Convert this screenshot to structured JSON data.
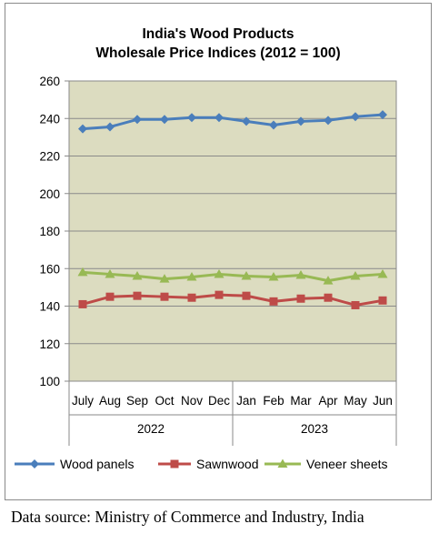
{
  "chart_data": {
    "type": "line",
    "title": [
      "India's Wood Products",
      "Wholesale Price Indices (2012 = 100)"
    ],
    "xlabel": "",
    "ylabel": "",
    "ylim": [
      100,
      260
    ],
    "yticks": [
      "260",
      "240",
      "220",
      "200",
      "180",
      "160",
      "140",
      "120",
      "100"
    ],
    "categories": [
      "July",
      "Aug",
      "Sep",
      "Oct",
      "Nov",
      "Dec",
      "Jan",
      "Feb",
      "Mar",
      "Apr",
      "May",
      "Jun"
    ],
    "year_groups": [
      {
        "label": "2022",
        "count": 6
      },
      {
        "label": "2023",
        "count": 6
      }
    ],
    "series": [
      {
        "name": "Wood panels",
        "color": "#4a7ebb",
        "marker": "diamond",
        "values": [
          234.5,
          235.5,
          239.5,
          239.5,
          240.5,
          240.5,
          238.5,
          236.5,
          238.5,
          239.0,
          241.0,
          242.0
        ]
      },
      {
        "name": "Sawnwood",
        "color": "#be4b48",
        "marker": "square",
        "values": [
          141.0,
          145.0,
          145.5,
          145.0,
          144.5,
          146.0,
          145.5,
          142.5,
          144.0,
          144.5,
          140.5,
          143.0
        ]
      },
      {
        "name": "Veneer sheets",
        "color": "#98b954",
        "marker": "triangle",
        "values": [
          158.0,
          157.0,
          156.0,
          154.5,
          155.5,
          157.0,
          156.0,
          155.5,
          156.5,
          153.5,
          156.0,
          157.0
        ]
      }
    ],
    "legend_position": "bottom",
    "grid": true,
    "plot_background": "#dcdcc0"
  },
  "source_text": "Data source: Ministry of Commerce and Industry, India"
}
